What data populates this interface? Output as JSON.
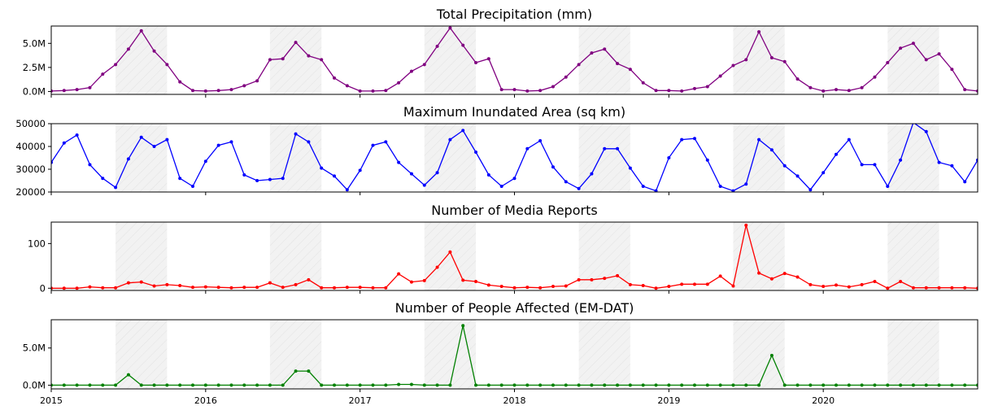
{
  "chart_data": [
    {
      "type": "line",
      "title": "Total Precipitation (mm)",
      "color": "#800080",
      "ylim": [
        -0.3,
        6.8
      ],
      "yticks": [
        0,
        2.5,
        5
      ],
      "ytick_labels": [
        "0.0M",
        "2.5M",
        "5.0M"
      ],
      "x_start": "2015-01",
      "values": [
        0.05,
        0.1,
        0.2,
        0.4,
        1.8,
        2.8,
        4.4,
        6.3,
        4.2,
        2.8,
        1.0,
        0.1,
        0.05,
        0.1,
        0.2,
        0.6,
        1.1,
        3.3,
        3.4,
        5.1,
        3.7,
        3.3,
        1.4,
        0.6,
        0.05,
        0.05,
        0.1,
        0.9,
        2.1,
        2.8,
        4.7,
        6.6,
        4.8,
        3.0,
        3.4,
        0.2,
        0.2,
        0.05,
        0.1,
        0.5,
        1.5,
        2.8,
        4.0,
        4.4,
        2.9,
        2.3,
        0.9,
        0.1,
        0.1,
        0.05,
        0.3,
        0.5,
        1.6,
        2.7,
        3.3,
        6.2,
        3.5,
        3.1,
        1.3,
        0.4,
        0.05,
        0.2,
        0.1,
        0.4,
        1.5,
        3.0,
        4.5,
        5.0,
        3.3,
        3.9,
        2.3,
        0.2,
        0.05
      ]
    },
    {
      "type": "line",
      "title": "Maximum Inundated Area (sq km)",
      "color": "#0000ff",
      "ylim": [
        20000,
        50000
      ],
      "yticks": [
        20000,
        30000,
        40000,
        50000
      ],
      "ytick_labels": [
        "20000",
        "30000",
        "40000",
        "50000"
      ],
      "x_start": "2015-01",
      "values": [
        33000,
        41500,
        45000,
        32000,
        26000,
        22000,
        34500,
        44000,
        40000,
        43000,
        26000,
        22500,
        33500,
        40500,
        42000,
        27500,
        25000,
        25500,
        26000,
        45500,
        42000,
        30500,
        27000,
        21000,
        29500,
        40500,
        42000,
        33000,
        28000,
        23000,
        28500,
        43000,
        47000,
        37500,
        27500,
        22500,
        26000,
        39000,
        42500,
        31000,
        24500,
        21500,
        28000,
        39000,
        39000,
        30500,
        22500,
        20500,
        35000,
        43000,
        43500,
        34000,
        22500,
        20500,
        23500,
        43000,
        38500,
        31500,
        27000,
        21000,
        28500,
        36500,
        43000,
        32000,
        32000,
        22500,
        34000,
        50500,
        46500,
        33000,
        31500,
        24500,
        34000
      ]
    },
    {
      "type": "line",
      "title": "Number of Media Reports",
      "color": "#ff0000",
      "ylim": [
        -5,
        148
      ],
      "yticks": [
        0,
        100
      ],
      "ytick_labels": [
        "0",
        "100"
      ],
      "x_start": "2015-01",
      "values": [
        0,
        0,
        0,
        3,
        1,
        1,
        12,
        14,
        5,
        8,
        6,
        2,
        3,
        2,
        1,
        2,
        2,
        12,
        2,
        8,
        19,
        1,
        1,
        2,
        2,
        1,
        1,
        32,
        14,
        17,
        47,
        81,
        18,
        15,
        7,
        4,
        1,
        2,
        1,
        4,
        5,
        19,
        19,
        22,
        28,
        8,
        6,
        0,
        4,
        9,
        9,
        9,
        27,
        5,
        141,
        34,
        21,
        33,
        25,
        8,
        4,
        7,
        3,
        8,
        15,
        0,
        15,
        1,
        1,
        1,
        1,
        1,
        0
      ]
    },
    {
      "type": "line",
      "title": "Number of People Affected (EM-DAT)",
      "color": "#008000",
      "ylim": [
        -0.5,
        8.8
      ],
      "yticks": [
        0,
        5
      ],
      "ytick_labels": [
        "0.0M",
        "5.0M"
      ],
      "x_start": "2015-01",
      "values": [
        0,
        0,
        0,
        0,
        0,
        0,
        1.4,
        0,
        0,
        0,
        0,
        0,
        0,
        0,
        0,
        0,
        0,
        0,
        0,
        1.9,
        1.9,
        0,
        0,
        0,
        0,
        0,
        0,
        0.1,
        0.1,
        0,
        0,
        0,
        8.0,
        0,
        0,
        0,
        0,
        0,
        0,
        0,
        0,
        0,
        0,
        0,
        0,
        0,
        0,
        0,
        0,
        0,
        0,
        0,
        0,
        0,
        0,
        0,
        4.0,
        0,
        0,
        0,
        0,
        0,
        0,
        0,
        0,
        0,
        0,
        0,
        0,
        0,
        0,
        0,
        0
      ]
    }
  ],
  "shaded_periods": [
    [
      "2015-06",
      "2015-10"
    ],
    [
      "2016-06",
      "2016-10"
    ],
    [
      "2017-06",
      "2017-10"
    ],
    [
      "2018-06",
      "2018-10"
    ],
    [
      "2019-06",
      "2019-10"
    ],
    [
      "2020-06",
      "2020-10"
    ]
  ],
  "x_axis": {
    "range": [
      "2015-01",
      "2021-01"
    ],
    "ticks": [
      "2015",
      "2016",
      "2017",
      "2018",
      "2019",
      "2020"
    ]
  }
}
